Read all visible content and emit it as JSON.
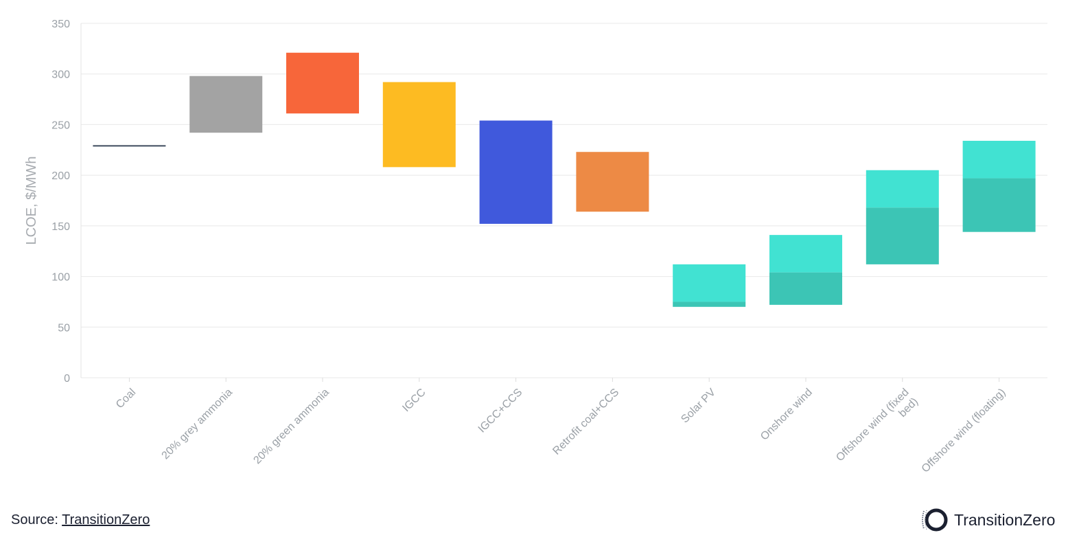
{
  "chart_data": {
    "type": "bar",
    "chart_subtype": "floating-range",
    "ylabel": "LCOE, $/MWh",
    "xlabel": "",
    "ylim": [
      0,
      350
    ],
    "yticks": [
      0,
      50,
      100,
      150,
      200,
      250,
      300,
      350
    ],
    "grid": true,
    "legend": "none",
    "categories": [
      "Coal",
      "20% grey ammonia",
      "20% green ammonia",
      "IGCC",
      "IGCC+CCS",
      "Retrofit coal+CCS",
      "Solar PV",
      "Onshore wind",
      "Offshore wind (fixed bed)",
      "Offshore wind (floating)"
    ],
    "category_label_lines": [
      [
        "Coal"
      ],
      [
        "20% grey ammonia"
      ],
      [
        "20% green ammonia"
      ],
      [
        "IGCC"
      ],
      [
        "IGCC+CCS"
      ],
      [
        "Retrofit coal+CCS"
      ],
      [
        "Solar PV"
      ],
      [
        "Onshore wind"
      ],
      [
        "Offshore wind (fixed",
        "bed)"
      ],
      [
        "Offshore wind (floating)"
      ]
    ],
    "ranges": [
      {
        "category": "Coal",
        "low": 229,
        "high": 229,
        "mid": null,
        "color": "#3d4a5c",
        "line": true
      },
      {
        "category": "20% grey ammonia",
        "low": 242,
        "high": 298,
        "mid": null,
        "color": "#a3a3a3"
      },
      {
        "category": "20% green ammonia",
        "low": 261,
        "high": 321,
        "mid": null,
        "color": "#f7663a"
      },
      {
        "category": "IGCC",
        "low": 208,
        "high": 292,
        "mid": null,
        "color": "#fdbb22"
      },
      {
        "category": "IGCC+CCS",
        "low": 152,
        "high": 254,
        "mid": null,
        "color": "#4059dc"
      },
      {
        "category": "Retrofit coal+CCS",
        "low": 164,
        "high": 223,
        "mid": null,
        "color": "#ed8a45"
      },
      {
        "category": "Solar PV",
        "low": 70,
        "high": 112,
        "mid": 75,
        "color": "#41e2d2",
        "dark_color": "#3cc5b5"
      },
      {
        "category": "Onshore wind",
        "low": 72,
        "high": 141,
        "mid": 104,
        "color": "#41e2d2",
        "dark_color": "#3cc5b5"
      },
      {
        "category": "Offshore wind (fixed bed)",
        "low": 112,
        "high": 205,
        "mid": 168,
        "color": "#41e2d2",
        "dark_color": "#3cc5b5"
      },
      {
        "category": "Offshore wind (floating)",
        "low": 144,
        "high": 234,
        "mid": 197,
        "color": "#41e2d2",
        "dark_color": "#3cc5b5"
      }
    ]
  },
  "footer": {
    "source_prefix": "Source: ",
    "source_link": "TransitionZero",
    "logo_text": "TransitionZero"
  }
}
